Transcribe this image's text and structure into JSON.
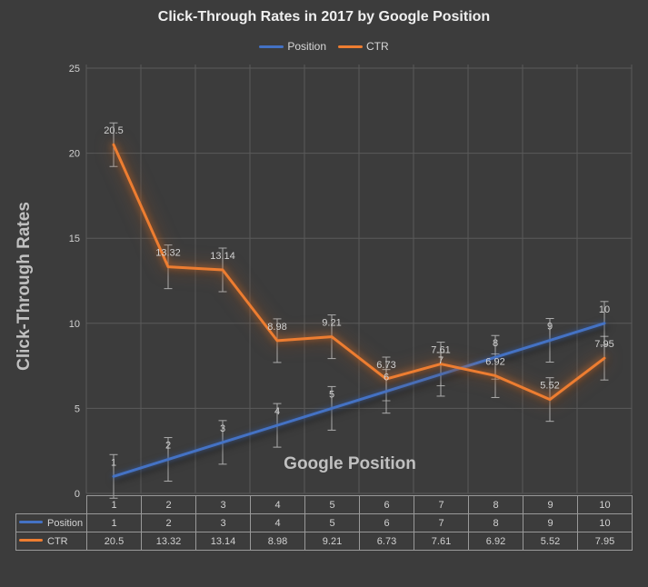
{
  "chart_data": {
    "type": "line",
    "title": "Click-Through Rates in 2017 by Google Position",
    "xlabel": "Google Position",
    "ylabel": "Click-Through Rates",
    "ylim": [
      0,
      25
    ],
    "yticks": [
      0,
      5,
      10,
      15,
      20,
      25
    ],
    "grid": "both",
    "legend_position": "top",
    "error_bars": true,
    "data_table_shown": true,
    "categories": [
      "1",
      "2",
      "3",
      "4",
      "5",
      "6",
      "7",
      "8",
      "9",
      "10"
    ],
    "series": [
      {
        "name": "Position",
        "color": "#4472C4",
        "values": [
          1,
          2,
          3,
          4,
          5,
          6,
          7,
          8,
          9,
          10
        ],
        "labels": [
          "1",
          "2",
          "3",
          "4",
          "5",
          "6",
          "7",
          "8",
          "9",
          "10"
        ]
      },
      {
        "name": "CTR",
        "color": "#ED7D31",
        "values": [
          20.5,
          13.32,
          13.14,
          8.98,
          9.21,
          6.73,
          7.61,
          6.92,
          5.52,
          7.95
        ],
        "labels": [
          "20.5",
          "13.32",
          "13.14",
          "8.98",
          "9.21",
          "6.73",
          "7.61",
          "6.92",
          "5.52",
          "7.95"
        ]
      }
    ]
  },
  "colors": {
    "background": "#3C3C3C",
    "gridline": "#5A5A5A",
    "title_text": "#EFEFEF",
    "label_text": "#D2D2D2",
    "axis_title_text": "#C0C0C0",
    "error_bar": "#C9C9C9",
    "table_border": "#999999"
  }
}
